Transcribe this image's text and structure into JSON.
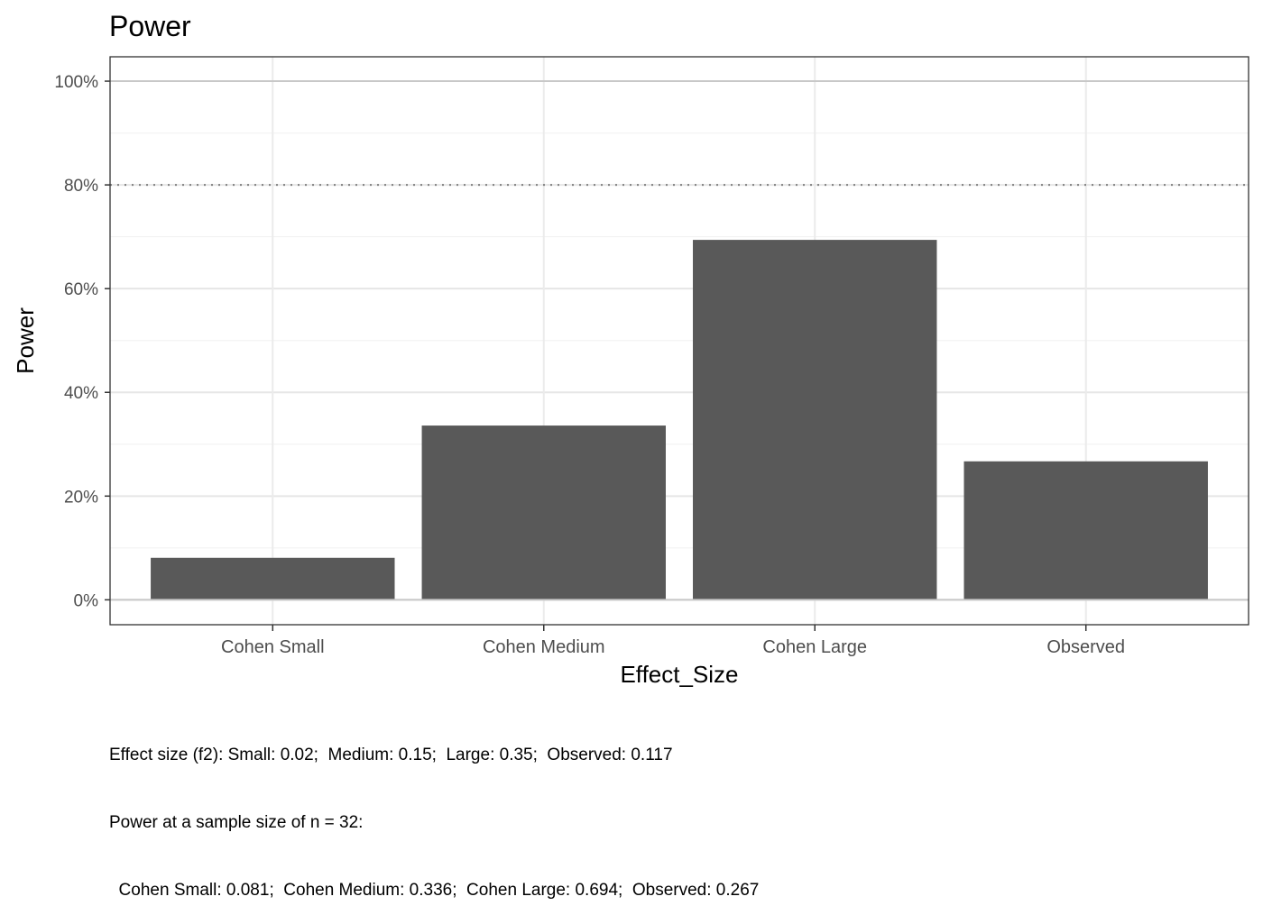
{
  "chart_data": {
    "type": "bar",
    "title": "Power",
    "xlabel": "Effect_Size",
    "ylabel": "Power",
    "categories": [
      "Cohen Small",
      "Cohen Medium",
      "Cohen Large",
      "Observed"
    ],
    "values": [
      0.081,
      0.336,
      0.694,
      0.267
    ],
    "ylim": [
      -0.048,
      1.047
    ],
    "yticks": [
      0,
      0.2,
      0.4,
      0.6,
      0.8,
      1.0
    ],
    "ytick_labels": [
      "0%",
      "20%",
      "40%",
      "60%",
      "80%",
      "100%"
    ],
    "reference_line": {
      "value": 0.8,
      "style": "dotted"
    },
    "grid": true,
    "bar_color": "#595959",
    "caption": [
      "Effect size (f2): Small: 0.02;  Medium: 0.15;  Large: 0.35;  Observed: 0.117",
      "Power at a sample size of n = 32:",
      "  Cohen Small: 0.081;  Cohen Medium: 0.336;  Cohen Large: 0.694;  Observed: 0.267"
    ]
  }
}
